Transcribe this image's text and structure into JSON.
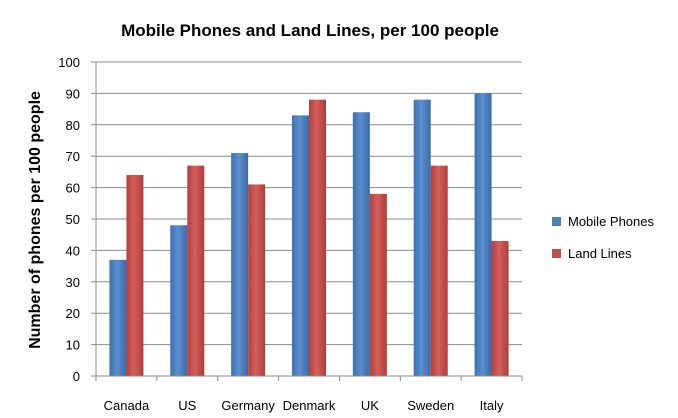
{
  "chart_data": {
    "type": "bar",
    "title": "Mobile Phones and Land Lines, per 100 people",
    "ylabel": "Number of phones per 100 people",
    "xlabel": "",
    "categories": [
      "Canada",
      "US",
      "Germany",
      "Denmark",
      "UK",
      "Sweden",
      "Italy"
    ],
    "series": [
      {
        "name": "Mobile Phones",
        "color": "#4a7ebb",
        "values": [
          37,
          48,
          71,
          83,
          84,
          88,
          90
        ]
      },
      {
        "name": "Land Lines",
        "color": "#c0504d",
        "values": [
          64,
          67,
          61,
          88,
          58,
          67,
          43
        ]
      }
    ],
    "ylim": [
      0,
      100
    ],
    "yticks": [
      0,
      10,
      20,
      30,
      40,
      50,
      60,
      70,
      80,
      90,
      100
    ],
    "grid": true,
    "legend_position": "right"
  }
}
